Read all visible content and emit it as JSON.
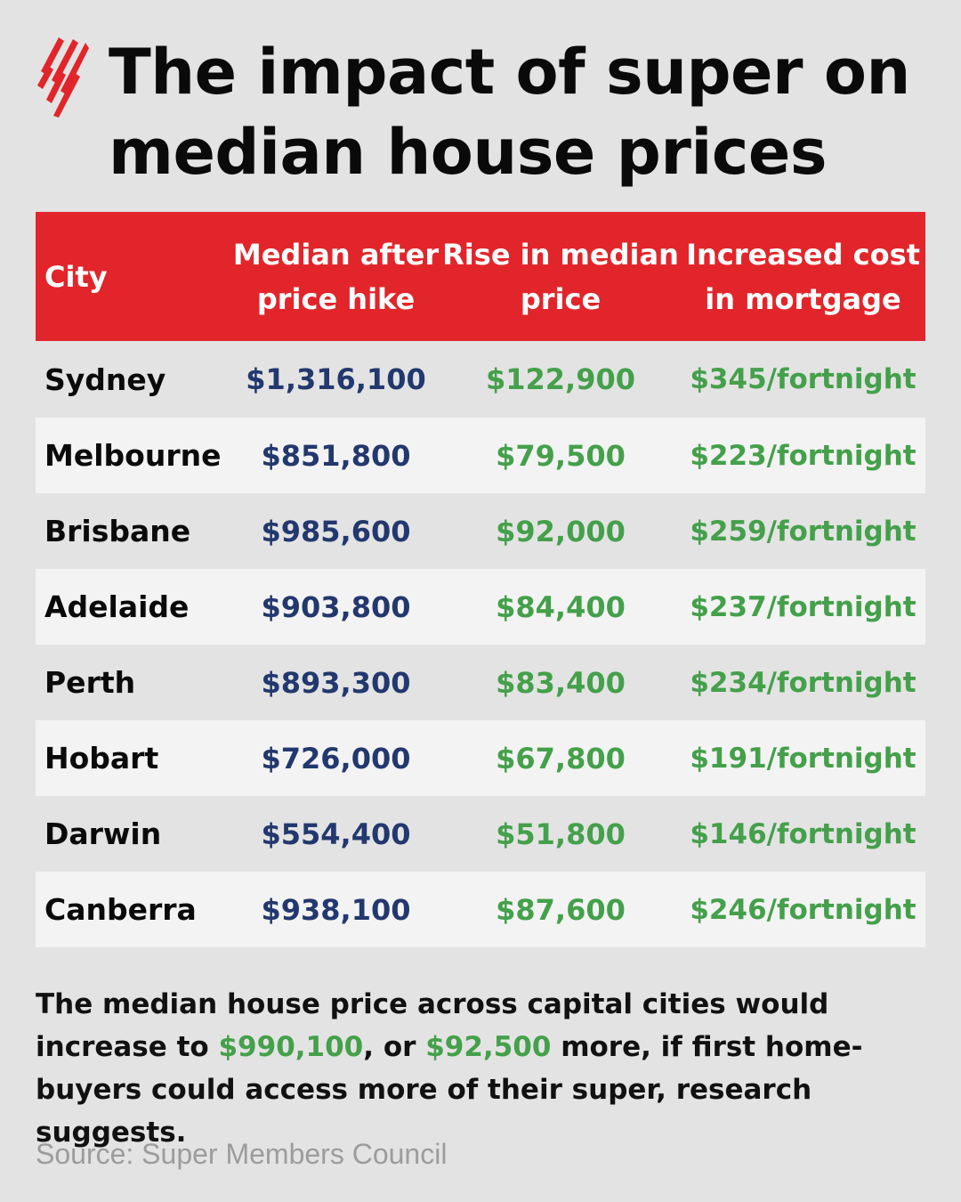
{
  "title": "The impact of super on median house prices",
  "colors": {
    "header_bg": "#e2252a",
    "background": "#e3e3e3",
    "median_text": "#22386e",
    "rise_text": "#44a04a",
    "row_alt_bg": "#f3f3f3"
  },
  "logo_icon": "sbs-red-stripes-logo",
  "chart_data": {
    "type": "table",
    "columns": [
      "City",
      "Median after price hike",
      "Rise in median price",
      "Increased cost in mortgage"
    ],
    "rows": [
      {
        "city": "Sydney",
        "median": "$1,316,100",
        "rise": "$122,900",
        "cost": "$345/fortnight"
      },
      {
        "city": "Melbourne",
        "median": "$851,800",
        "rise": "$79,500",
        "cost": "$223/fortnight"
      },
      {
        "city": "Brisbane",
        "median": "$985,600",
        "rise": "$92,000",
        "cost": "$259/fortnight"
      },
      {
        "city": "Adelaide",
        "median": "$903,800",
        "rise": "$84,400",
        "cost": "$237/fortnight"
      },
      {
        "city": "Perth",
        "median": "$893,300",
        "rise": "$83,400",
        "cost": "$234/fortnight"
      },
      {
        "city": "Hobart",
        "median": "$726,000",
        "rise": "$67,800",
        "cost": "$191/fortnight"
      },
      {
        "city": "Darwin",
        "median": "$554,400",
        "rise": "$51,800",
        "cost": "$146/fortnight"
      },
      {
        "city": "Canberra",
        "median": "$938,100",
        "rise": "$87,600",
        "cost": "$246/fortnight"
      }
    ]
  },
  "summary": {
    "part1": "The median house price across capital cities would increase to ",
    "value1": "$990,100",
    "part2": ", or ",
    "value2": "$92,500",
    "part3": " more, if first home-buyers could access more of their super, research suggests."
  },
  "source": "Source: Super Members Council"
}
